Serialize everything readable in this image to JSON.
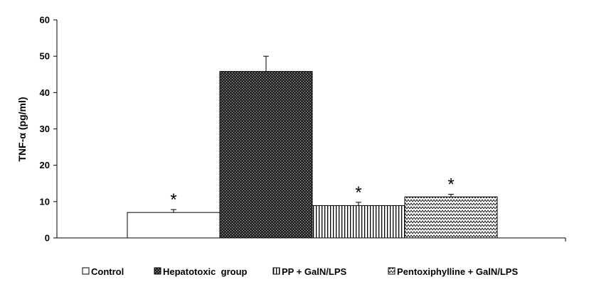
{
  "chart_data": {
    "type": "bar",
    "ylabel": "TNF-α (pg/ml)",
    "xlabel": "",
    "ylim": [
      0,
      60
    ],
    "yticks": [
      0,
      10,
      20,
      30,
      40,
      50,
      60
    ],
    "grid": false,
    "legend_position": "bottom",
    "series": [
      {
        "name": "Control",
        "value": 7,
        "error": 0.8,
        "significance": "*",
        "pattern": "plain",
        "fill": "#ffffff"
      },
      {
        "name": "Hepatotoxic  group",
        "value": 45.8,
        "error": 4.2,
        "significance": "",
        "pattern": "dots",
        "fill": "#333333"
      },
      {
        "name": "PP + GalN/LPS",
        "value": 8.9,
        "error": 0.9,
        "significance": "*",
        "pattern": "vertical-lines",
        "fill": "#ffffff"
      },
      {
        "name": "Pentoxiphylline + GalN/LPS",
        "value": 11.3,
        "error": 0.7,
        "significance": "*",
        "pattern": "zigzag",
        "fill": "#ffffff"
      }
    ]
  }
}
